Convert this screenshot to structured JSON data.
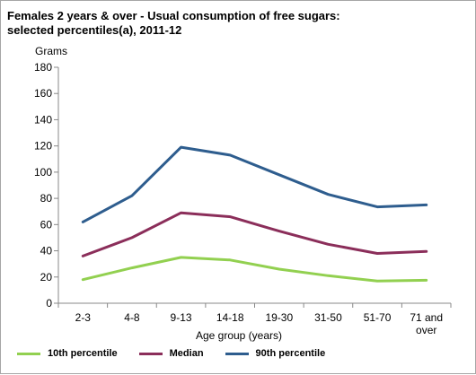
{
  "chart_data": {
    "type": "line",
    "title": "Females 2 years & over - Usual consumption  of free sugars:",
    "subtitle": "selected percentiles(a), 2011-12",
    "ylabel": "Grams",
    "xlabel": "Age group  (years)",
    "ylim": [
      0,
      180
    ],
    "yticks": [
      "0",
      "20",
      "40",
      "60",
      "80",
      "100",
      "120",
      "140",
      "160",
      "180"
    ],
    "categories": [
      "2-3",
      "4-8",
      "9-13",
      "14-18",
      "19-30",
      "31-50",
      "51-70",
      "71 and over"
    ],
    "category_lines": [
      [
        "2-3"
      ],
      [
        "4-8"
      ],
      [
        "9-13"
      ],
      [
        "14-18"
      ],
      [
        "19-30"
      ],
      [
        "31-50"
      ],
      [
        "51-70"
      ],
      [
        "71 and",
        "over"
      ]
    ],
    "grid": false,
    "legend_position": "bottom",
    "series": [
      {
        "name": "10th percentile",
        "color": "#92d050",
        "values": [
          18,
          27,
          35,
          33,
          26,
          21,
          17,
          17.5
        ]
      },
      {
        "name": "Median",
        "color": "#8b2e5a",
        "values": [
          36,
          50,
          69,
          66,
          55,
          45,
          38,
          39.5
        ]
      },
      {
        "name": "90th percentile",
        "color": "#2e5d8e",
        "values": [
          62,
          82,
          119,
          113,
          98,
          83,
          73.5,
          75
        ]
      }
    ]
  }
}
